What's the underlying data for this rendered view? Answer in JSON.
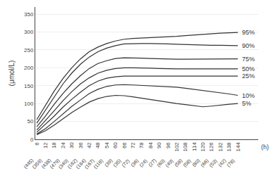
{
  "chart_data": {
    "type": "line",
    "y_label": "(μmol/L)",
    "x_label": "(h)",
    "x": [
      6,
      12,
      18,
      24,
      30,
      36,
      42,
      48,
      54,
      60,
      66,
      72,
      78,
      84,
      90,
      96,
      102,
      108,
      114,
      120,
      126,
      132,
      138,
      144
    ],
    "color": "#333333",
    "series": [
      {
        "name": "95%",
        "values": [
          55,
          95,
          135,
          170,
          200,
          225,
          245,
          258,
          268,
          275,
          280,
          282,
          283,
          284,
          285,
          286,
          288,
          290,
          292,
          294,
          296,
          297,
          298,
          299
        ]
      },
      {
        "name": "90%",
        "values": [
          45,
          82,
          120,
          155,
          185,
          210,
          230,
          245,
          255,
          262,
          267,
          268,
          268,
          268,
          268,
          267,
          266,
          265,
          264,
          263,
          263,
          263,
          262,
          262
        ]
      },
      {
        "name": "75%",
        "values": [
          35,
          65,
          98,
          128,
          155,
          178,
          198,
          212,
          220,
          226,
          228,
          228,
          227,
          226,
          225,
          224,
          224,
          224,
          224,
          224,
          224,
          224,
          225,
          225
        ]
      },
      {
        "name": "50%",
        "values": [
          26,
          52,
          80,
          108,
          133,
          155,
          172,
          185,
          193,
          198,
          200,
          200,
          200,
          199,
          198,
          197,
          197,
          197,
          197,
          197,
          197,
          197,
          197,
          197
        ]
      },
      {
        "name": "25%",
        "values": [
          20,
          42,
          65,
          90,
          112,
          132,
          150,
          163,
          171,
          175,
          177,
          177,
          177,
          177,
          177,
          177,
          177,
          177,
          177,
          177,
          177,
          177,
          177,
          177
        ]
      },
      {
        "name": "10%",
        "values": [
          15,
          30,
          50,
          72,
          92,
          110,
          128,
          140,
          148,
          152,
          153,
          152,
          151,
          150,
          149,
          148,
          146,
          143,
          140,
          137,
          133,
          130,
          127,
          123
        ]
      },
      {
        "name": "5%",
        "values": [
          13,
          24,
          40,
          58,
          75,
          90,
          104,
          114,
          120,
          123,
          122,
          119,
          115,
          112,
          108,
          104,
          100,
          97,
          94,
          91,
          93,
          96,
          98,
          100
        ]
      }
    ],
    "annotations": [
      {
        "x": 6,
        "text": "(445)"
      },
      {
        "x": 12,
        "text": "(359)"
      },
      {
        "x": 18,
        "text": "(438)"
      },
      {
        "x": 24,
        "text": "(479)"
      },
      {
        "x": 30,
        "text": "(340)"
      },
      {
        "x": 36,
        "text": "(162)"
      },
      {
        "x": 42,
        "text": "(184)"
      },
      {
        "x": 48,
        "text": "(167)"
      },
      {
        "x": 54,
        "text": "(118)"
      },
      {
        "x": 60,
        "text": "(39)"
      },
      {
        "x": 66,
        "text": "(35)"
      },
      {
        "x": 72,
        "text": "(72)"
      },
      {
        "x": 78,
        "text": "(36)"
      },
      {
        "x": 84,
        "text": "(24)"
      },
      {
        "x": 90,
        "text": "(27)"
      },
      {
        "x": 96,
        "text": "(60)"
      },
      {
        "x": 102,
        "text": "(49)"
      },
      {
        "x": 108,
        "text": "(58)"
      },
      {
        "x": 114,
        "text": "(58)"
      },
      {
        "x": 120,
        "text": "(80)"
      },
      {
        "x": 126,
        "text": "(66)"
      },
      {
        "x": 132,
        "text": "(53)"
      },
      {
        "x": 138,
        "text": "(42)"
      },
      {
        "x": 144,
        "text": "(78)"
      }
    ],
    "xlim": [
      5,
      158
    ],
    "xticks": [
      6,
      12,
      18,
      24,
      30,
      36,
      42,
      48,
      54,
      60,
      66,
      72,
      78,
      84,
      90,
      96,
      102,
      108,
      114,
      120,
      126,
      132,
      138,
      144
    ],
    "ylim": [
      0,
      370
    ],
    "yticks": [
      0,
      50,
      100,
      150,
      200,
      250,
      300,
      350
    ],
    "grid": "y"
  }
}
